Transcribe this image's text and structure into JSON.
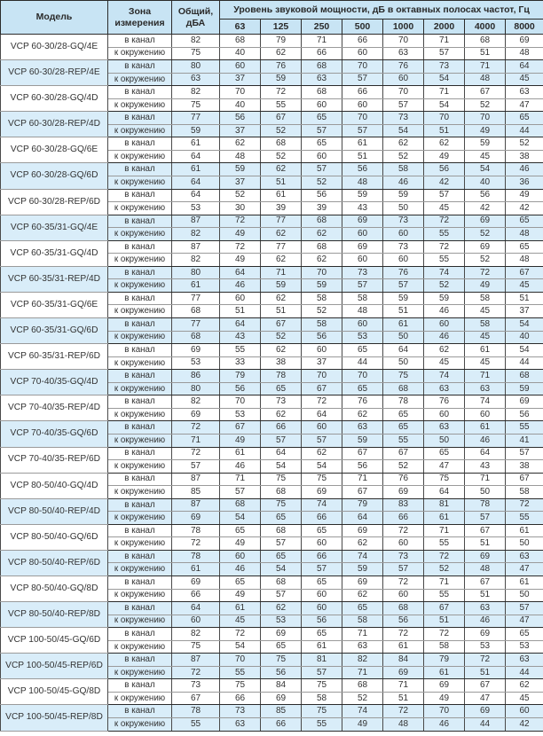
{
  "header": {
    "model": "Модель",
    "zone": "Зона измерения",
    "total": "Общий, дБА",
    "spl_group": "Уровень звуковой мощности, дБ в октавных полосах частот, Гц",
    "freqs": [
      "63",
      "125",
      "250",
      "500",
      "1000",
      "2000",
      "4000",
      "8000"
    ]
  },
  "zone_labels": {
    "duct": "в канал",
    "env": "к окружению"
  },
  "colors": {
    "header_bg": "#c8e4f4",
    "row_shaded_bg": "#d9edf9",
    "row_bg": "#ffffff",
    "border_dark": "#2b2b2b",
    "border_light": "#9a9a9a",
    "text": "#333333"
  },
  "chart_data": {
    "type": "table",
    "title": "Уровень звуковой мощности, дБ в октавных полосах частот, Гц",
    "columns": [
      "Модель",
      "Зона измерения",
      "Общий, дБА",
      "63",
      "125",
      "250",
      "500",
      "1000",
      "2000",
      "4000",
      "8000"
    ]
  },
  "models": [
    {
      "name": "VCP 60-30/28-GQ/4E",
      "shaded": false,
      "duct": [
        82,
        68,
        79,
        71,
        66,
        70,
        71,
        68,
        69
      ],
      "env": [
        75,
        40,
        62,
        66,
        60,
        63,
        57,
        51,
        48
      ]
    },
    {
      "name": "VCP 60-30/28-REP/4E",
      "shaded": true,
      "duct": [
        80,
        60,
        76,
        68,
        70,
        76,
        73,
        71,
        64
      ],
      "env": [
        63,
        37,
        59,
        63,
        57,
        60,
        54,
        48,
        45
      ]
    },
    {
      "name": "VCP 60-30/28-GQ/4D",
      "shaded": false,
      "duct": [
        82,
        70,
        72,
        68,
        66,
        70,
        71,
        67,
        63
      ],
      "env": [
        75,
        40,
        55,
        60,
        60,
        57,
        54,
        52,
        47
      ]
    },
    {
      "name": "VCP 60-30/28-REP/4D",
      "shaded": true,
      "duct": [
        77,
        56,
        67,
        65,
        70,
        73,
        70,
        70,
        65
      ],
      "env": [
        59,
        37,
        52,
        57,
        57,
        54,
        51,
        49,
        44
      ]
    },
    {
      "name": "VCP 60-30/28-GQ/6E",
      "shaded": false,
      "duct": [
        61,
        62,
        68,
        65,
        61,
        62,
        62,
        59,
        52
      ],
      "env": [
        64,
        48,
        52,
        60,
        51,
        52,
        49,
        45,
        38
      ]
    },
    {
      "name": "VCP 60-30/28-GQ/6D",
      "shaded": true,
      "duct": [
        61,
        59,
        62,
        57,
        56,
        58,
        56,
        54,
        46
      ],
      "env": [
        64,
        37,
        51,
        52,
        48,
        46,
        42,
        40,
        36
      ]
    },
    {
      "name": "VCP 60-30/28-REP/6D",
      "shaded": false,
      "duct": [
        64,
        52,
        61,
        56,
        59,
        59,
        57,
        56,
        49
      ],
      "env": [
        53,
        30,
        39,
        39,
        43,
        50,
        45,
        42,
        42
      ]
    },
    {
      "name": "VCP 60-35/31-GQ/4E",
      "shaded": true,
      "duct": [
        87,
        72,
        77,
        68,
        69,
        73,
        72,
        69,
        65
      ],
      "env": [
        82,
        49,
        62,
        62,
        60,
        60,
        55,
        52,
        48
      ]
    },
    {
      "name": "VCP 60-35/31-GQ/4D",
      "shaded": false,
      "duct": [
        87,
        72,
        77,
        68,
        69,
        73,
        72,
        69,
        65
      ],
      "env": [
        82,
        49,
        62,
        62,
        60,
        60,
        55,
        52,
        48
      ]
    },
    {
      "name": "VCP 60-35/31-REP/4D",
      "shaded": true,
      "duct": [
        80,
        64,
        71,
        70,
        73,
        76,
        74,
        72,
        67
      ],
      "env": [
        61,
        46,
        59,
        59,
        57,
        57,
        52,
        49,
        45
      ]
    },
    {
      "name": "VCP 60-35/31-GQ/6E",
      "shaded": false,
      "duct": [
        77,
        60,
        62,
        58,
        58,
        59,
        59,
        58,
        51
      ],
      "env": [
        68,
        51,
        51,
        52,
        48,
        51,
        46,
        45,
        37
      ]
    },
    {
      "name": "VCP 60-35/31-GQ/6D",
      "shaded": true,
      "duct": [
        77,
        64,
        67,
        58,
        60,
        61,
        60,
        58,
        54
      ],
      "env": [
        68,
        43,
        52,
        56,
        53,
        50,
        46,
        45,
        40
      ]
    },
    {
      "name": "VCP 60-35/31-REP/6D",
      "shaded": false,
      "duct": [
        69,
        55,
        62,
        60,
        65,
        64,
        62,
        61,
        54
      ],
      "env": [
        53,
        33,
        38,
        37,
        44,
        50,
        45,
        45,
        44
      ]
    },
    {
      "name": "VCP 70-40/35-GQ/4D",
      "shaded": true,
      "duct": [
        86,
        79,
        78,
        70,
        70,
        75,
        74,
        71,
        68
      ],
      "env": [
        80,
        56,
        65,
        67,
        65,
        68,
        63,
        63,
        59
      ]
    },
    {
      "name": "VCP 70-40/35-REP/4D",
      "shaded": false,
      "duct": [
        82,
        70,
        73,
        72,
        76,
        78,
        76,
        74,
        69
      ],
      "env": [
        69,
        53,
        62,
        64,
        62,
        65,
        60,
        60,
        56
      ]
    },
    {
      "name": "VCP 70-40/35-GQ/6D",
      "shaded": true,
      "duct": [
        72,
        67,
        66,
        60,
        63,
        65,
        63,
        61,
        55
      ],
      "env": [
        71,
        49,
        57,
        57,
        59,
        55,
        50,
        46,
        41
      ]
    },
    {
      "name": "VCP 70-40/35-REP/6D",
      "shaded": false,
      "duct": [
        72,
        61,
        64,
        62,
        67,
        67,
        65,
        64,
        57
      ],
      "env": [
        57,
        46,
        54,
        54,
        56,
        52,
        47,
        43,
        38
      ]
    },
    {
      "name": "VCP 80-50/40-GQ/4D",
      "shaded": false,
      "duct": [
        87,
        71,
        75,
        75,
        71,
        76,
        75,
        71,
        67
      ],
      "env": [
        85,
        57,
        68,
        69,
        67,
        69,
        64,
        50,
        58
      ]
    },
    {
      "name": "VCP 80-50/40-REP/4D",
      "shaded": true,
      "duct": [
        87,
        68,
        75,
        74,
        79,
        83,
        81,
        78,
        72
      ],
      "env": [
        69,
        54,
        65,
        66,
        64,
        66,
        61,
        57,
        55
      ]
    },
    {
      "name": "VCP 80-50/40-GQ/6D",
      "shaded": false,
      "duct": [
        78,
        65,
        68,
        65,
        69,
        72,
        71,
        67,
        61
      ],
      "env": [
        72,
        49,
        57,
        60,
        62,
        60,
        55,
        51,
        50
      ]
    },
    {
      "name": "VCP 80-50/40-REP/6D",
      "shaded": true,
      "duct": [
        78,
        60,
        65,
        66,
        74,
        73,
        72,
        69,
        63
      ],
      "env": [
        61,
        46,
        54,
        57,
        59,
        57,
        52,
        48,
        47
      ]
    },
    {
      "name": "VCP 80-50/40-GQ/8D",
      "shaded": false,
      "duct": [
        69,
        65,
        68,
        65,
        69,
        72,
        71,
        67,
        61
      ],
      "env": [
        66,
        49,
        57,
        60,
        62,
        60,
        55,
        51,
        50
      ]
    },
    {
      "name": "VCP 80-50/40-REP/8D",
      "shaded": true,
      "duct": [
        64,
        61,
        62,
        60,
        65,
        68,
        67,
        63,
        57
      ],
      "env": [
        60,
        45,
        53,
        56,
        58,
        56,
        51,
        46,
        47
      ]
    },
    {
      "name": "VCP 100-50/45-GQ/6D",
      "shaded": false,
      "duct": [
        82,
        72,
        69,
        65,
        71,
        72,
        72,
        69,
        65
      ],
      "env": [
        75,
        54,
        65,
        61,
        63,
        61,
        58,
        53,
        53
      ]
    },
    {
      "name": "VCP 100-50/45-REP/6D",
      "shaded": true,
      "duct": [
        87,
        70,
        75,
        81,
        82,
        84,
        79,
        72,
        63
      ],
      "env": [
        72,
        55,
        56,
        57,
        71,
        69,
        61,
        51,
        44
      ]
    },
    {
      "name": "VCP 100-50/45-GQ/8D",
      "shaded": false,
      "duct": [
        73,
        75,
        84,
        75,
        68,
        71,
        69,
        67,
        62
      ],
      "env": [
        67,
        66,
        69,
        58,
        52,
        51,
        49,
        47,
        45
      ]
    },
    {
      "name": "VCP 100-50/45-REP/8D",
      "shaded": true,
      "duct": [
        78,
        73,
        85,
        75,
        74,
        72,
        70,
        69,
        60
      ],
      "env": [
        55,
        63,
        66,
        55,
        49,
        48,
        46,
        44,
        42
      ]
    }
  ]
}
